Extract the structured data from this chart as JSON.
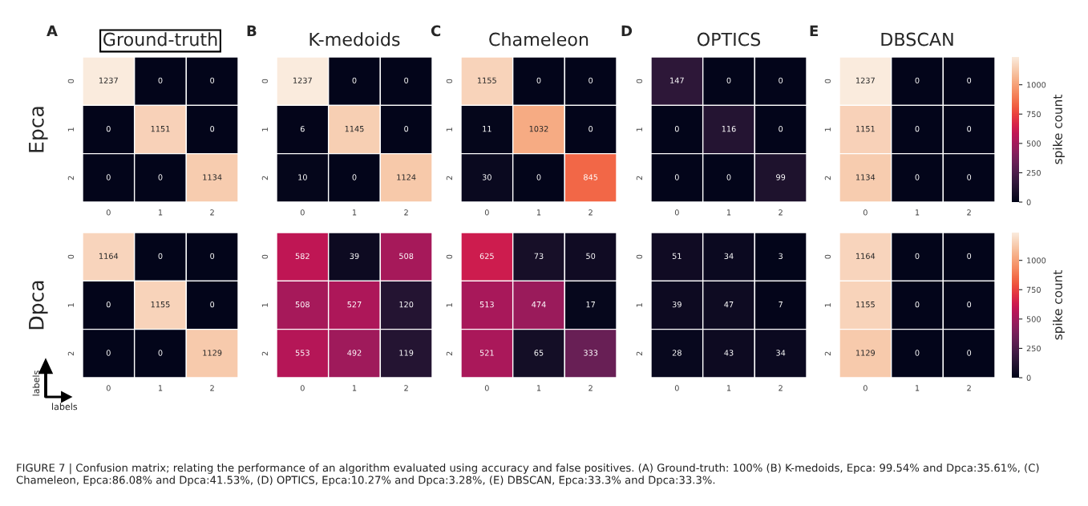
{
  "chart_data": [
    {
      "type": "heatmap",
      "title": "Ground-truth",
      "ylabel": "Epca",
      "annotations": [
        "A",
        "FIGURE 7 | Confusion matrix; relating the performance of an algorithm evaluated using accuracy and false positives. (A) Ground-truth: 100% (B) K-medoids, Epca: 99.54% and Dpca:35.61%, (C) Chameleon, Epca:86.08% and Dpca:41.53%, (D) OPTICS, Epca:10.27% and Dpca:3.28%, (E) DBSCAN, Epca:33.3% and Dpca:33.3%."
      ],
      "categories": [
        "0",
        "1",
        "2"
      ],
      "y_categories": [
        "0",
        "1",
        "2"
      ],
      "cells": [
        [
          1237,
          0,
          0
        ],
        [
          0,
          1151,
          0
        ],
        [
          0,
          0,
          1134
        ]
      ],
      "data_labels": true
    },
    {
      "type": "heatmap",
      "title": "K-medoids",
      "annotations": [
        "B"
      ],
      "categories": [
        "0",
        "1",
        "2"
      ],
      "y_categories": [
        "0",
        "1",
        "2"
      ],
      "cells": [
        [
          1237,
          0,
          0
        ],
        [
          6,
          1145,
          0
        ],
        [
          10,
          0,
          1124
        ]
      ],
      "data_labels": true
    },
    {
      "type": "heatmap",
      "title": "Chameleon",
      "annotations": [
        "C"
      ],
      "categories": [
        "0",
        "1",
        "2"
      ],
      "y_categories": [
        "0",
        "1",
        "2"
      ],
      "cells": [
        [
          1155,
          0,
          0
        ],
        [
          11,
          1032,
          0
        ],
        [
          30,
          0,
          845
        ]
      ],
      "data_labels": true
    },
    {
      "type": "heatmap",
      "title": "OPTICS",
      "annotations": [
        "D"
      ],
      "categories": [
        "0",
        "1",
        "2"
      ],
      "y_categories": [
        "0",
        "1",
        "2"
      ],
      "cells": [
        [
          147,
          0,
          0
        ],
        [
          0,
          116,
          0
        ],
        [
          0,
          0,
          99
        ]
      ],
      "data_labels": true
    },
    {
      "type": "heatmap",
      "title": "DBSCAN",
      "annotations": [
        "E"
      ],
      "categories": [
        "0",
        "1",
        "2"
      ],
      "y_categories": [
        "0",
        "1",
        "2"
      ],
      "cells": [
        [
          1237,
          0,
          0
        ],
        [
          1151,
          0,
          0
        ],
        [
          1134,
          0,
          0
        ]
      ],
      "data_labels": true,
      "clim": [
        0,
        1237
      ],
      "cticks": [
        0,
        250,
        500,
        750,
        1000
      ],
      "clabel": "spike count"
    },
    {
      "type": "heatmap",
      "ylabel": "Dpca",
      "annotations": [
        "labels",
        "labels"
      ],
      "categories": [
        "0",
        "1",
        "2"
      ],
      "y_categories": [
        "0",
        "1",
        "2"
      ],
      "cells": [
        [
          1164,
          0,
          0
        ],
        [
          0,
          1155,
          0
        ],
        [
          0,
          0,
          1129
        ]
      ],
      "data_labels": true
    },
    {
      "type": "heatmap",
      "categories": [
        "0",
        "1",
        "2"
      ],
      "y_categories": [
        "0",
        "1",
        "2"
      ],
      "cells": [
        [
          582,
          39,
          508
        ],
        [
          508,
          527,
          120
        ],
        [
          553,
          492,
          119
        ]
      ],
      "data_labels": true
    },
    {
      "type": "heatmap",
      "categories": [
        "0",
        "1",
        "2"
      ],
      "y_categories": [
        "0",
        "1",
        "2"
      ],
      "cells": [
        [
          625,
          73,
          50
        ],
        [
          513,
          474,
          17
        ],
        [
          521,
          65,
          333
        ]
      ],
      "data_labels": true
    },
    {
      "type": "heatmap",
      "categories": [
        "0",
        "1",
        "2"
      ],
      "y_categories": [
        "0",
        "1",
        "2"
      ],
      "cells": [
        [
          51,
          34,
          3
        ],
        [
          39,
          47,
          7
        ],
        [
          28,
          43,
          34
        ]
      ],
      "data_labels": true
    },
    {
      "type": "heatmap",
      "categories": [
        "0",
        "1",
        "2"
      ],
      "y_categories": [
        "0",
        "1",
        "2"
      ],
      "cells": [
        [
          1164,
          0,
          0
        ],
        [
          1155,
          0,
          0
        ],
        [
          1129,
          0,
          0
        ]
      ],
      "data_labels": true,
      "clim": [
        0,
        1237
      ],
      "cticks": [
        0,
        250,
        500,
        750,
        1000
      ],
      "clabel": "spike count"
    }
  ]
}
